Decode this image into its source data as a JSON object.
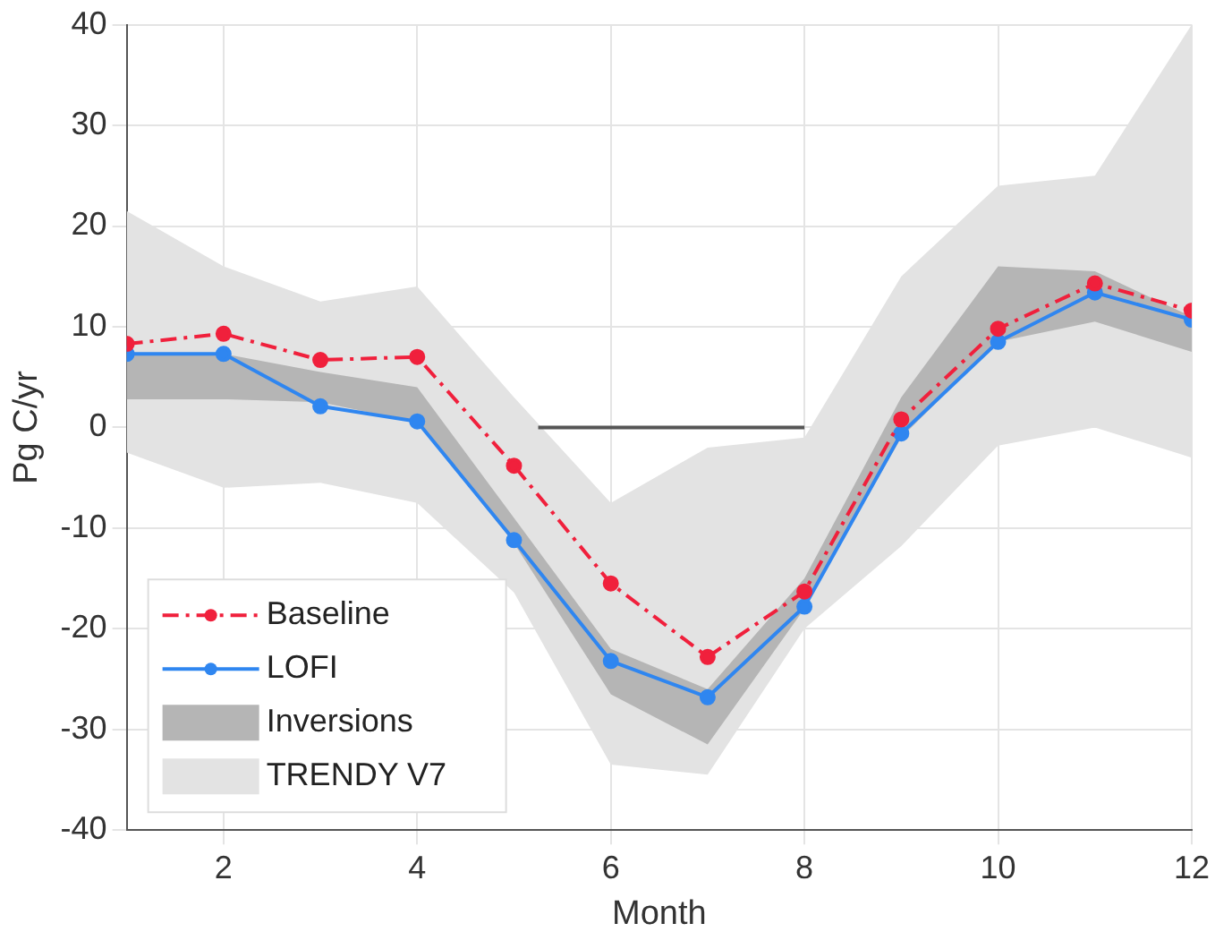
{
  "chart_data": {
    "type": "line",
    "xlabel": "Month",
    "ylabel": "Pg C/yr",
    "x": [
      1,
      2,
      3,
      4,
      5,
      6,
      7,
      8,
      9,
      10,
      11,
      12
    ],
    "xlim": [
      1,
      12
    ],
    "xticks": [
      2,
      4,
      6,
      8,
      10,
      12
    ],
    "ylim": [
      -40,
      40
    ],
    "yticks": [
      -40,
      -30,
      -20,
      -10,
      0,
      10,
      20,
      30,
      40
    ],
    "grid": true,
    "legend": "bottom left",
    "marker": "circle",
    "series": [
      {
        "name": "Baseline",
        "color": "#f0203c",
        "line_style": "dashed",
        "values": [
          8.3,
          9.3,
          6.7,
          7.0,
          -3.8,
          -15.5,
          -22.8,
          -16.3,
          0.8,
          9.8,
          14.3,
          11.6
        ]
      },
      {
        "name": "LOFI",
        "color": "#2f86f0",
        "line_style": "solid",
        "values": [
          7.3,
          7.3,
          2.1,
          0.6,
          -11.2,
          -23.2,
          -26.8,
          -17.8,
          -0.6,
          8.5,
          13.4,
          10.7
        ]
      },
      {
        "name": "Inversions",
        "type": "area",
        "color": "#b5b5b5",
        "values": [
          null,
          null,
          null,
          null,
          null,
          null,
          null,
          null,
          null,
          null,
          null,
          null
        ],
        "lower": [
          2.8,
          2.8,
          2.5,
          0.5,
          -11.5,
          -26.5,
          -31.5,
          -18,
          -1,
          8.5,
          10.5,
          7.5
        ],
        "upper": [
          7.3,
          7.3,
          5.5,
          4,
          -9,
          -22,
          -26,
          -15,
          3,
          16,
          15.5,
          11
        ]
      },
      {
        "name": "TRENDY V7",
        "type": "area",
        "color": "#e3e3e3",
        "values": [
          null,
          null,
          null,
          null,
          null,
          null,
          null,
          null,
          null,
          null,
          null,
          null
        ],
        "lower": [
          -2.5,
          -6,
          -5.5,
          -7.5,
          -16.4,
          -33.5,
          -34.5,
          -20,
          -11.8,
          -1.8,
          0,
          -3
        ],
        "upper": [
          21.5,
          16,
          12.5,
          14,
          3,
          -7.5,
          -2,
          -1,
          15,
          24,
          25,
          40
        ]
      },
      {
        "x": [
          5.25,
          8
        ],
        "values": [
          0,
          0
        ],
        "color": "#555555",
        "marker": "none"
      }
    ]
  }
}
